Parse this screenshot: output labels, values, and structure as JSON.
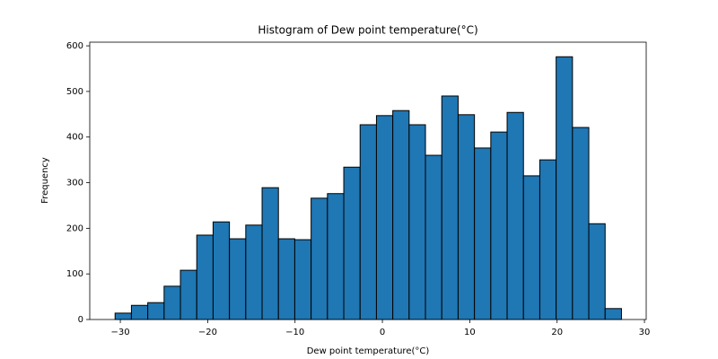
{
  "chart_data": {
    "type": "histogram",
    "title": "Histogram of Dew point temperature(°C)",
    "x_label": "Dew point temperature(°C)",
    "y_label": "Frequency",
    "bins": [
      -30.6,
      -28.73,
      -26.86,
      -24.99,
      -23.12,
      -21.25,
      -19.38,
      -17.51,
      -15.64,
      -13.77,
      -11.9,
      -10.03,
      -8.16,
      -6.29,
      -4.42,
      -2.55,
      -0.68,
      1.19,
      3.06,
      4.93,
      6.8,
      8.67,
      10.54,
      12.41,
      14.28,
      16.15,
      18.02,
      19.89,
      21.76,
      23.63,
      25.5,
      27.37
    ],
    "values": [
      14,
      31,
      37,
      73,
      108,
      185,
      214,
      177,
      207,
      289,
      177,
      175,
      266,
      276,
      334,
      427,
      447,
      458,
      427,
      360,
      490,
      449,
      376,
      411,
      454,
      315,
      350,
      576,
      421,
      210,
      24
    ],
    "color": "#1f77b4",
    "edgecolor": "#000000",
    "xlim": [
      -33.5,
      30.2
    ],
    "xticks": [
      {
        "value": -30,
        "label": "−30"
      },
      {
        "value": -20,
        "label": "−20"
      },
      {
        "value": -10,
        "label": "−10"
      },
      0,
      10,
      20,
      30
    ],
    "ylim": [
      0,
      608
    ],
    "yticks": [
      0,
      100,
      200,
      300,
      400,
      500,
      600
    ],
    "grid": false
  }
}
